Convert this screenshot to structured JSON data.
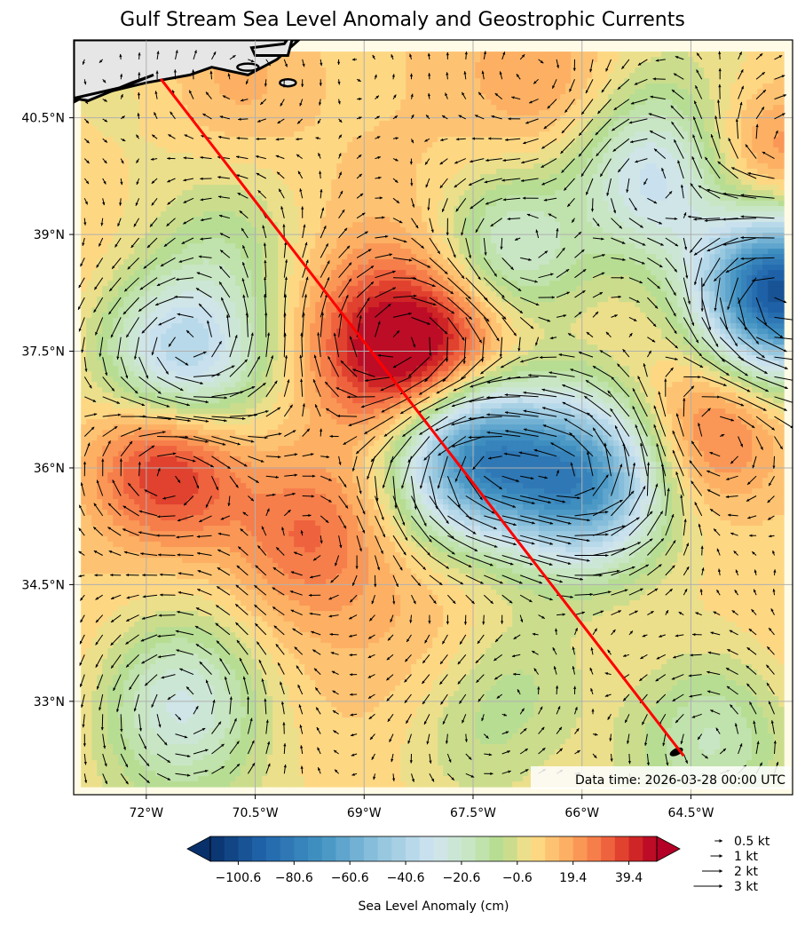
{
  "chart_data": {
    "type": "heatmap",
    "title": "Gulf Stream Sea Level Anomaly and Geostrophic Currents",
    "annotation": "Data time: 2026-03-28 00:00 UTC",
    "x_ticks": [
      {
        "value": -72.0,
        "label": "72°W"
      },
      {
        "value": -70.5,
        "label": "70.5°W"
      },
      {
        "value": -69.0,
        "label": "69°W"
      },
      {
        "value": -67.5,
        "label": "67.5°W"
      },
      {
        "value": -66.0,
        "label": "66°W"
      },
      {
        "value": -64.5,
        "label": "64.5°W"
      }
    ],
    "y_ticks": [
      {
        "value": 40.5,
        "label": "40.5°N"
      },
      {
        "value": 39.0,
        "label": "39°N"
      },
      {
        "value": 37.5,
        "label": "37.5°N"
      },
      {
        "value": 36.0,
        "label": "36°N"
      },
      {
        "value": 34.5,
        "label": "34.5°N"
      },
      {
        "value": 33.0,
        "label": "33°N"
      }
    ],
    "xlim": [
      -73.0,
      -63.1
    ],
    "ylim": [
      31.8,
      41.5
    ],
    "grid": true,
    "colorbar": {
      "label": "Sea Level Anomaly (cm)",
      "range": [
        -110.6,
        49.4
      ],
      "tick_labels": [
        {
          "value": -100.6,
          "label": "−100.6"
        },
        {
          "value": -80.6,
          "label": "−80.6"
        },
        {
          "value": -60.6,
          "label": "−60.6"
        },
        {
          "value": -40.6,
          "label": "−40.6"
        },
        {
          "value": -20.6,
          "label": "−20.6"
        },
        {
          "value": -0.6,
          "label": "−0.6"
        },
        {
          "value": 19.4,
          "label": "19.4"
        },
        {
          "value": 39.4,
          "label": "39.4"
        }
      ]
    },
    "quiver_key": [
      {
        "speed": 0.5,
        "label": "0.5 kt"
      },
      {
        "speed": 1,
        "label": "1 kt"
      },
      {
        "speed": 2,
        "label": "2 kt"
      },
      {
        "speed": 3,
        "label": "3 kt"
      }
    ],
    "transect": {
      "color": "#ff0000",
      "start": [
        -71.8,
        41.0
      ],
      "end": [
        -64.6,
        32.3
      ]
    },
    "eddies": [
      {
        "lon": -71.7,
        "lat": 36.1,
        "sla": 45
      },
      {
        "lon": -68.7,
        "lat": 37.5,
        "sla": 35
      },
      {
        "lon": -67.8,
        "lat": 37.4,
        "sla": 30
      },
      {
        "lon": -69.8,
        "lat": 35.2,
        "sla": 22
      },
      {
        "lon": -64.2,
        "lat": 36.5,
        "sla": 28
      },
      {
        "lon": -70.8,
        "lat": 41.0,
        "sla": 14
      },
      {
        "lon": -66.5,
        "lat": 41.0,
        "sla": 14
      },
      {
        "lon": -63.4,
        "lat": 39.8,
        "sla": 25
      },
      {
        "lon": -67.5,
        "lat": 36.2,
        "sla": -85
      },
      {
        "lon": -66.0,
        "lat": 35.8,
        "sla": -75
      },
      {
        "lon": -71.5,
        "lat": 37.4,
        "sla": -50
      },
      {
        "lon": -63.3,
        "lat": 38.3,
        "sla": -110
      },
      {
        "lon": -67.0,
        "lat": 38.8,
        "sla": -35
      },
      {
        "lon": -65.0,
        "lat": 39.7,
        "sla": -38
      },
      {
        "lon": -71.5,
        "lat": 33.0,
        "sla": -32
      },
      {
        "lon": -70.8,
        "lat": 38.9,
        "sla": -14
      },
      {
        "lon": -66.8,
        "lat": 33.4,
        "sla": -14
      },
      {
        "lon": -64.2,
        "lat": 32.6,
        "sla": -20
      },
      {
        "lon": -67.6,
        "lat": 32.5,
        "sla": -12
      }
    ]
  }
}
